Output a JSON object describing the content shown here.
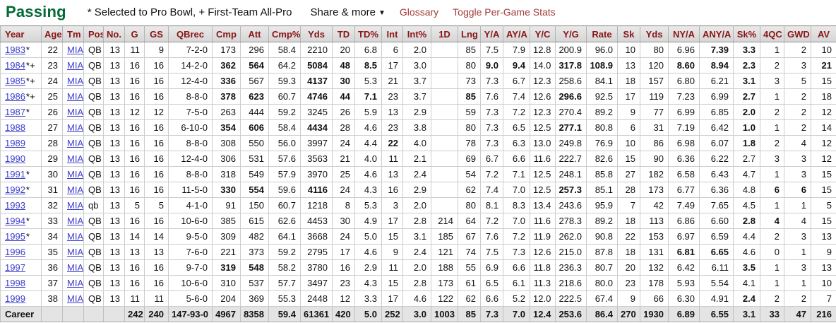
{
  "header": {
    "title": "Passing",
    "legend": "* Selected to Pro Bowl, + First-Team All-Pro",
    "share_menu": "Share & more",
    "share_arrow": "▼",
    "glossary": "Glossary",
    "toggle_stats": "Toggle Per-Game Stats"
  },
  "colors": {
    "title_green": "#046937",
    "header_red": "#8b1414",
    "link_red": "#a33c3c",
    "link_blue": "#3d3dcc",
    "career_bg": "#e4e4e4",
    "grid": "#cccccc"
  },
  "table": {
    "columns": [
      "Year",
      "Age",
      "Tm",
      "Pos",
      "No.",
      "G",
      "GS",
      "QBrec",
      "Cmp",
      "Att",
      "Cmp%",
      "Yds",
      "TD",
      "TD%",
      "Int",
      "Int%",
      "1D",
      "Lng",
      "Y/A",
      "AY/A",
      "Y/C",
      "Y/G",
      "Rate",
      "Sk",
      "Yds",
      "NY/A",
      "ANY/A",
      "Sk%",
      "4QC",
      "GWD",
      "AV"
    ],
    "rows": [
      {
        "year": "1983",
        "suffix": "*",
        "cells": [
          "22",
          "MIA",
          "QB",
          "13",
          "11",
          "9",
          "7-2-0",
          "173",
          "296",
          "58.4",
          "2210",
          "20",
          "6.8",
          "6",
          "2.0",
          "",
          "85",
          "7.5",
          "7.9",
          "12.8",
          "200.9",
          "96.0",
          "10",
          "80",
          "6.96",
          "7.39",
          "3.3",
          "1",
          "2",
          "10"
        ],
        "bold": [
          25,
          26
        ]
      },
      {
        "year": "1984",
        "suffix": "*+",
        "cells": [
          "23",
          "MIA",
          "QB",
          "13",
          "16",
          "16",
          "14-2-0",
          "362",
          "564",
          "64.2",
          "5084",
          "48",
          "8.5",
          "17",
          "3.0",
          "",
          "80",
          "9.0",
          "9.4",
          "14.0",
          "317.8",
          "108.9",
          "13",
          "120",
          "8.60",
          "8.94",
          "2.3",
          "2",
          "3",
          "21"
        ],
        "bold": [
          7,
          8,
          10,
          11,
          12,
          17,
          18,
          20,
          21,
          24,
          25,
          26,
          29
        ]
      },
      {
        "year": "1985",
        "suffix": "*+",
        "cells": [
          "24",
          "MIA",
          "QB",
          "13",
          "16",
          "16",
          "12-4-0",
          "336",
          "567",
          "59.3",
          "4137",
          "30",
          "5.3",
          "21",
          "3.7",
          "",
          "73",
          "7.3",
          "6.7",
          "12.3",
          "258.6",
          "84.1",
          "18",
          "157",
          "6.80",
          "6.21",
          "3.1",
          "3",
          "5",
          "15"
        ],
        "bold": [
          7,
          10,
          11,
          26
        ]
      },
      {
        "year": "1986",
        "suffix": "*+",
        "cells": [
          "25",
          "MIA",
          "QB",
          "13",
          "16",
          "16",
          "8-8-0",
          "378",
          "623",
          "60.7",
          "4746",
          "44",
          "7.1",
          "23",
          "3.7",
          "",
          "85",
          "7.6",
          "7.4",
          "12.6",
          "296.6",
          "92.5",
          "17",
          "119",
          "7.23",
          "6.99",
          "2.7",
          "1",
          "2",
          "18"
        ],
        "bold": [
          7,
          8,
          10,
          11,
          12,
          16,
          20,
          26
        ]
      },
      {
        "year": "1987",
        "suffix": "*",
        "cells": [
          "26",
          "MIA",
          "QB",
          "13",
          "12",
          "12",
          "7-5-0",
          "263",
          "444",
          "59.2",
          "3245",
          "26",
          "5.9",
          "13",
          "2.9",
          "",
          "59",
          "7.3",
          "7.2",
          "12.3",
          "270.4",
          "89.2",
          "9",
          "77",
          "6.99",
          "6.85",
          "2.0",
          "2",
          "2",
          "12"
        ],
        "bold": [
          26
        ]
      },
      {
        "year": "1988",
        "suffix": "",
        "cells": [
          "27",
          "MIA",
          "QB",
          "13",
          "16",
          "16",
          "6-10-0",
          "354",
          "606",
          "58.4",
          "4434",
          "28",
          "4.6",
          "23",
          "3.8",
          "",
          "80",
          "7.3",
          "6.5",
          "12.5",
          "277.1",
          "80.8",
          "6",
          "31",
          "7.19",
          "6.42",
          "1.0",
          "1",
          "2",
          "14"
        ],
        "bold": [
          7,
          8,
          10,
          20,
          26
        ]
      },
      {
        "year": "1989",
        "suffix": "",
        "cells": [
          "28",
          "MIA",
          "QB",
          "13",
          "16",
          "16",
          "8-8-0",
          "308",
          "550",
          "56.0",
          "3997",
          "24",
          "4.4",
          "22",
          "4.0",
          "",
          "78",
          "7.3",
          "6.3",
          "13.0",
          "249.8",
          "76.9",
          "10",
          "86",
          "6.98",
          "6.07",
          "1.8",
          "2",
          "4",
          "12"
        ],
        "bold": [
          13,
          26
        ]
      },
      {
        "year": "1990",
        "suffix": "",
        "cells": [
          "29",
          "MIA",
          "QB",
          "13",
          "16",
          "16",
          "12-4-0",
          "306",
          "531",
          "57.6",
          "3563",
          "21",
          "4.0",
          "11",
          "2.1",
          "",
          "69",
          "6.7",
          "6.6",
          "11.6",
          "222.7",
          "82.6",
          "15",
          "90",
          "6.36",
          "6.22",
          "2.7",
          "3",
          "3",
          "12"
        ],
        "bold": []
      },
      {
        "year": "1991",
        "suffix": "*",
        "cells": [
          "30",
          "MIA",
          "QB",
          "13",
          "16",
          "16",
          "8-8-0",
          "318",
          "549",
          "57.9",
          "3970",
          "25",
          "4.6",
          "13",
          "2.4",
          "",
          "54",
          "7.2",
          "7.1",
          "12.5",
          "248.1",
          "85.8",
          "27",
          "182",
          "6.58",
          "6.43",
          "4.7",
          "1",
          "3",
          "15"
        ],
        "bold": []
      },
      {
        "year": "1992",
        "suffix": "*",
        "cells": [
          "31",
          "MIA",
          "QB",
          "13",
          "16",
          "16",
          "11-5-0",
          "330",
          "554",
          "59.6",
          "4116",
          "24",
          "4.3",
          "16",
          "2.9",
          "",
          "62",
          "7.4",
          "7.0",
          "12.5",
          "257.3",
          "85.1",
          "28",
          "173",
          "6.77",
          "6.36",
          "4.8",
          "6",
          "6",
          "15"
        ],
        "bold": [
          7,
          8,
          10,
          20,
          27,
          28
        ]
      },
      {
        "year": "1993",
        "suffix": "",
        "cells": [
          "32",
          "MIA",
          "qb",
          "13",
          "5",
          "5",
          "4-1-0",
          "91",
          "150",
          "60.7",
          "1218",
          "8",
          "5.3",
          "3",
          "2.0",
          "",
          "80",
          "8.1",
          "8.3",
          "13.4",
          "243.6",
          "95.9",
          "7",
          "42",
          "7.49",
          "7.65",
          "4.5",
          "1",
          "1",
          "5"
        ],
        "bold": []
      },
      {
        "year": "1994",
        "suffix": "*",
        "cells": [
          "33",
          "MIA",
          "QB",
          "13",
          "16",
          "16",
          "10-6-0",
          "385",
          "615",
          "62.6",
          "4453",
          "30",
          "4.9",
          "17",
          "2.8",
          "214",
          "64",
          "7.2",
          "7.0",
          "11.6",
          "278.3",
          "89.2",
          "18",
          "113",
          "6.86",
          "6.60",
          "2.8",
          "4",
          "4",
          "15"
        ],
        "bold": [
          26,
          27
        ]
      },
      {
        "year": "1995",
        "suffix": "*",
        "cells": [
          "34",
          "MIA",
          "QB",
          "13",
          "14",
          "14",
          "9-5-0",
          "309",
          "482",
          "64.1",
          "3668",
          "24",
          "5.0",
          "15",
          "3.1",
          "185",
          "67",
          "7.6",
          "7.2",
          "11.9",
          "262.0",
          "90.8",
          "22",
          "153",
          "6.97",
          "6.59",
          "4.4",
          "2",
          "3",
          "13"
        ],
        "bold": []
      },
      {
        "year": "1996",
        "suffix": "",
        "cells": [
          "35",
          "MIA",
          "QB",
          "13",
          "13",
          "13",
          "7-6-0",
          "221",
          "373",
          "59.2",
          "2795",
          "17",
          "4.6",
          "9",
          "2.4",
          "121",
          "74",
          "7.5",
          "7.3",
          "12.6",
          "215.0",
          "87.8",
          "18",
          "131",
          "6.81",
          "6.65",
          "4.6",
          "0",
          "1",
          "9"
        ],
        "bold": [
          24,
          25
        ]
      },
      {
        "year": "1997",
        "suffix": "",
        "cells": [
          "36",
          "MIA",
          "QB",
          "13",
          "16",
          "16",
          "9-7-0",
          "319",
          "548",
          "58.2",
          "3780",
          "16",
          "2.9",
          "11",
          "2.0",
          "188",
          "55",
          "6.9",
          "6.6",
          "11.8",
          "236.3",
          "80.7",
          "20",
          "132",
          "6.42",
          "6.11",
          "3.5",
          "1",
          "3",
          "13"
        ],
        "bold": [
          7,
          8,
          26
        ]
      },
      {
        "year": "1998",
        "suffix": "",
        "cells": [
          "37",
          "MIA",
          "QB",
          "13",
          "16",
          "16",
          "10-6-0",
          "310",
          "537",
          "57.7",
          "3497",
          "23",
          "4.3",
          "15",
          "2.8",
          "173",
          "61",
          "6.5",
          "6.1",
          "11.3",
          "218.6",
          "80.0",
          "23",
          "178",
          "5.93",
          "5.54",
          "4.1",
          "1",
          "1",
          "10"
        ],
        "bold": []
      },
      {
        "year": "1999",
        "suffix": "",
        "cells": [
          "38",
          "MIA",
          "QB",
          "13",
          "11",
          "11",
          "5-6-0",
          "204",
          "369",
          "55.3",
          "2448",
          "12",
          "3.3",
          "17",
          "4.6",
          "122",
          "62",
          "6.6",
          "5.2",
          "12.0",
          "222.5",
          "67.4",
          "9",
          "66",
          "6.30",
          "4.91",
          "2.4",
          "2",
          "2",
          "7"
        ],
        "bold": [
          26
        ]
      },
      {
        "year": "Career",
        "suffix": "",
        "career": true,
        "cells": [
          "",
          "",
          "",
          "",
          "242",
          "240",
          "147-93-0",
          "4967",
          "8358",
          "59.4",
          "61361",
          "420",
          "5.0",
          "252",
          "3.0",
          "1003",
          "85",
          "7.3",
          "7.0",
          "12.4",
          "253.6",
          "86.4",
          "270",
          "1930",
          "6.89",
          "6.55",
          "3.1",
          "33",
          "47",
          "216"
        ],
        "bold": []
      }
    ]
  }
}
